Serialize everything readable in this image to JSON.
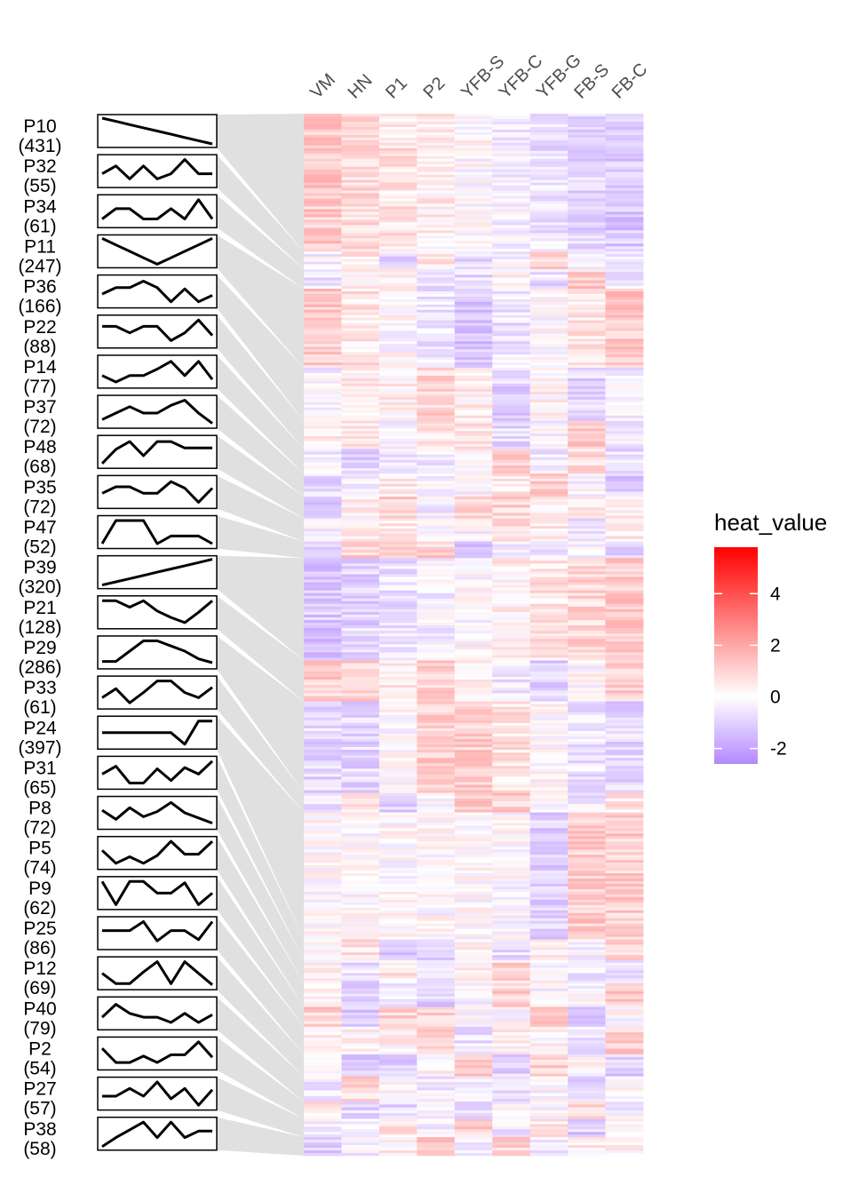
{
  "chart_data": {
    "type": "heatmap",
    "columns": [
      "VM",
      "HN",
      "P1",
      "P2",
      "YFB-S",
      "YFB-C",
      "YFB-G",
      "FB-S",
      "FB-C"
    ],
    "legend": {
      "title": "heat_value",
      "ticks": [
        4,
        2,
        0,
        -2
      ],
      "range": [
        -2.6,
        5.8
      ],
      "low_color": "#b388ff",
      "mid_color": "#ffffff",
      "high_color": "#ff0000"
    },
    "patterns": [
      {
        "id": "P10",
        "count": 431,
        "profile": [
          1.0,
          0.875,
          0.75,
          0.625,
          0.5,
          0.375,
          0.25,
          0.125,
          0.0
        ]
      },
      {
        "id": "P32",
        "count": 55,
        "profile": [
          0.4,
          0.7,
          0.2,
          0.7,
          0.2,
          0.4,
          0.95,
          0.4,
          0.4
        ]
      },
      {
        "id": "P34",
        "count": 61,
        "profile": [
          0.2,
          0.6,
          0.6,
          0.2,
          0.2,
          0.6,
          0.2,
          0.95,
          0.2
        ]
      },
      {
        "id": "P11",
        "count": 247,
        "profile": [
          1.0,
          0.75,
          0.5,
          0.25,
          0.0,
          0.25,
          0.5,
          0.75,
          1.0
        ]
      },
      {
        "id": "P36",
        "count": 166,
        "profile": [
          0.4,
          0.65,
          0.65,
          0.9,
          0.65,
          0.1,
          0.6,
          0.1,
          0.35
        ]
      },
      {
        "id": "P22",
        "count": 88,
        "profile": [
          0.7,
          0.7,
          0.45,
          0.7,
          0.7,
          0.15,
          0.45,
          0.95,
          0.35
        ]
      },
      {
        "id": "P14",
        "count": 77,
        "profile": [
          0.35,
          0.1,
          0.35,
          0.35,
          0.6,
          0.9,
          0.35,
          0.9,
          0.2
        ]
      },
      {
        "id": "P37",
        "count": 72,
        "profile": [
          0.2,
          0.45,
          0.7,
          0.45,
          0.45,
          0.75,
          0.95,
          0.45,
          0.05
        ]
      },
      {
        "id": "P48",
        "count": 68,
        "profile": [
          0.05,
          0.6,
          0.9,
          0.35,
          0.9,
          0.9,
          0.65,
          0.65,
          0.65
        ]
      },
      {
        "id": "P35",
        "count": 72,
        "profile": [
          0.45,
          0.7,
          0.7,
          0.45,
          0.45,
          0.9,
          0.65,
          0.1,
          0.65
        ]
      },
      {
        "id": "P47",
        "count": 52,
        "profile": [
          0.05,
          0.95,
          0.95,
          0.95,
          0.05,
          0.35,
          0.35,
          0.35,
          0.05
        ]
      },
      {
        "id": "P39",
        "count": 320,
        "profile": [
          0.0,
          0.125,
          0.25,
          0.375,
          0.5,
          0.625,
          0.75,
          0.875,
          1.0
        ]
      },
      {
        "id": "P21",
        "count": 128,
        "profile": [
          0.95,
          0.95,
          0.7,
          0.95,
          0.55,
          0.3,
          0.1,
          0.5,
          0.95
        ]
      },
      {
        "id": "P29",
        "count": 286,
        "profile": [
          0.15,
          0.15,
          0.55,
          0.95,
          0.95,
          0.75,
          0.55,
          0.25,
          0.1
        ]
      },
      {
        "id": "P33",
        "count": 61,
        "profile": [
          0.3,
          0.65,
          0.1,
          0.5,
          0.95,
          0.95,
          0.5,
          0.3,
          0.7
        ]
      },
      {
        "id": "P24",
        "count": 397,
        "profile": [
          0.5,
          0.5,
          0.5,
          0.5,
          0.5,
          0.5,
          0.05,
          0.95,
          0.95
        ]
      },
      {
        "id": "P31",
        "count": 65,
        "profile": [
          0.45,
          0.75,
          0.1,
          0.1,
          0.65,
          0.2,
          0.7,
          0.45,
          0.95
        ]
      },
      {
        "id": "P8",
        "count": 72,
        "profile": [
          0.6,
          0.25,
          0.7,
          0.35,
          0.55,
          0.9,
          0.5,
          0.3,
          0.1
        ]
      },
      {
        "id": "P5",
        "count": 74,
        "profile": [
          0.6,
          0.1,
          0.35,
          0.1,
          0.4,
          0.95,
          0.45,
          0.45,
          0.95
        ]
      },
      {
        "id": "P9",
        "count": 62,
        "profile": [
          0.95,
          0.05,
          0.95,
          0.95,
          0.5,
          0.5,
          0.9,
          0.05,
          0.5
        ]
      },
      {
        "id": "P25",
        "count": 86,
        "profile": [
          0.6,
          0.6,
          0.6,
          0.95,
          0.2,
          0.6,
          0.6,
          0.25,
          0.95
        ]
      },
      {
        "id": "P12",
        "count": 69,
        "profile": [
          0.5,
          0.1,
          0.1,
          0.55,
          0.95,
          0.1,
          0.95,
          0.5,
          0.05
        ]
      },
      {
        "id": "P40",
        "count": 79,
        "profile": [
          0.35,
          0.85,
          0.5,
          0.35,
          0.35,
          0.15,
          0.5,
          0.15,
          0.45
        ]
      },
      {
        "id": "P2",
        "count": 54,
        "profile": [
          0.7,
          0.15,
          0.15,
          0.4,
          0.15,
          0.45,
          0.45,
          0.95,
          0.35
        ]
      },
      {
        "id": "P27",
        "count": 57,
        "profile": [
          0.4,
          0.4,
          0.7,
          0.4,
          0.95,
          0.3,
          0.7,
          0.05,
          0.65
        ]
      },
      {
        "id": "P38",
        "count": 58,
        "profile": [
          0.0,
          0.35,
          0.65,
          0.95,
          0.35,
          0.95,
          0.35,
          0.6,
          0.6
        ]
      }
    ]
  }
}
